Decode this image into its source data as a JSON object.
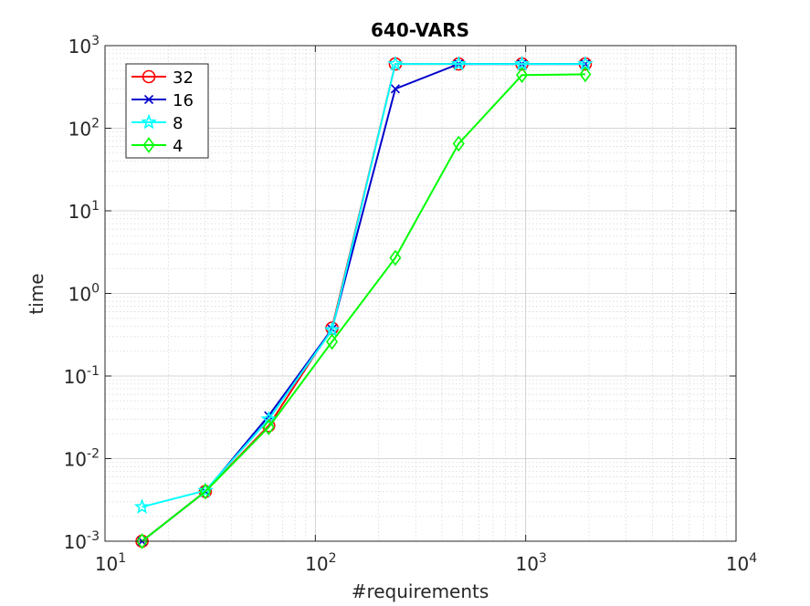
{
  "chart_data": {
    "type": "line",
    "title": "640-VARS",
    "xlabel": "#requirements",
    "ylabel": "time",
    "xscale": "log",
    "yscale": "log",
    "xlim": [
      10,
      10000
    ],
    "ylim": [
      0.001,
      1000
    ],
    "x_ticks": [
      {
        "value": 10,
        "base": "10",
        "exp": "1"
      },
      {
        "value": 100,
        "base": "10",
        "exp": "2"
      },
      {
        "value": 1000,
        "base": "10",
        "exp": "3"
      },
      {
        "value": 10000,
        "base": "10",
        "exp": "4"
      }
    ],
    "y_ticks": [
      {
        "value": 0.001,
        "base": "10",
        "exp": "-3"
      },
      {
        "value": 0.01,
        "base": "10",
        "exp": "-2"
      },
      {
        "value": 0.1,
        "base": "10",
        "exp": "-1"
      },
      {
        "value": 1,
        "base": "10",
        "exp": "0"
      },
      {
        "value": 10,
        "base": "10",
        "exp": "1"
      },
      {
        "value": 100,
        "base": "10",
        "exp": "2"
      },
      {
        "value": 1000,
        "base": "10",
        "exp": "3"
      }
    ],
    "grid": true,
    "minor_grid": true,
    "legend_position": "top-left",
    "series": [
      {
        "name": "32",
        "color": "#ff0000",
        "marker": "circle",
        "x": [
          15,
          30,
          60,
          120,
          240,
          480,
          960,
          1920
        ],
        "y": [
          0.001,
          0.004,
          0.025,
          0.38,
          600,
          600,
          600,
          600
        ]
      },
      {
        "name": "16",
        "color": "#0000cc",
        "marker": "x",
        "x": [
          15,
          30,
          60,
          120,
          240,
          480,
          960,
          1920
        ],
        "y": [
          0.001,
          0.004,
          0.033,
          0.37,
          300,
          600,
          600,
          600
        ]
      },
      {
        "name": "8",
        "color": "#00ffff",
        "marker": "star",
        "x": [
          15,
          30,
          60,
          120,
          240,
          480,
          960,
          1920
        ],
        "y": [
          0.0026,
          0.0041,
          0.03,
          0.36,
          600,
          600,
          600,
          600
        ]
      },
      {
        "name": "4",
        "color": "#00ff00",
        "marker": "diamond",
        "x": [
          15,
          30,
          60,
          120,
          240,
          480,
          960,
          1920
        ],
        "y": [
          0.001,
          0.004,
          0.024,
          0.26,
          2.7,
          65,
          440,
          450
        ]
      }
    ]
  }
}
